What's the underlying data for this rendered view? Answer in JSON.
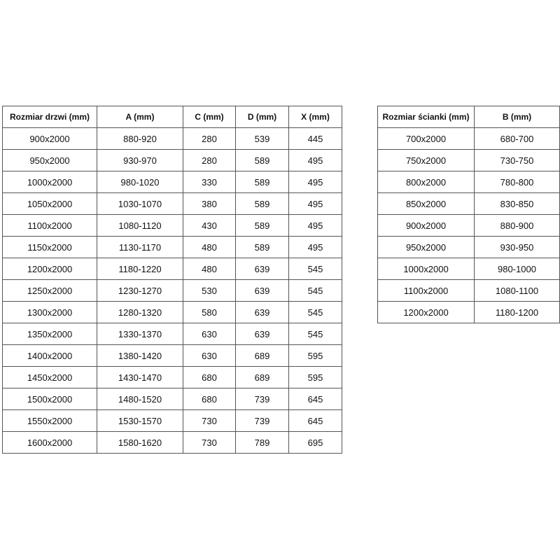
{
  "door_table": {
    "header": [
      "Rozmiar drzwi (mm)",
      "A (mm)",
      "C (mm)",
      "D (mm)",
      "X (mm)"
    ],
    "rows": [
      [
        "900x2000",
        "880-920",
        "280",
        "539",
        "445"
      ],
      [
        "950x2000",
        "930-970",
        "280",
        "589",
        "495"
      ],
      [
        "1000x2000",
        "980-1020",
        "330",
        "589",
        "495"
      ],
      [
        "1050x2000",
        "1030-1070",
        "380",
        "589",
        "495"
      ],
      [
        "1100x2000",
        "1080-1120",
        "430",
        "589",
        "495"
      ],
      [
        "1150x2000",
        "1130-1170",
        "480",
        "589",
        "495"
      ],
      [
        "1200x2000",
        "1180-1220",
        "480",
        "639",
        "545"
      ],
      [
        "1250x2000",
        "1230-1270",
        "530",
        "639",
        "545"
      ],
      [
        "1300x2000",
        "1280-1320",
        "580",
        "639",
        "545"
      ],
      [
        "1350x2000",
        "1330-1370",
        "630",
        "639",
        "545"
      ],
      [
        "1400x2000",
        "1380-1420",
        "630",
        "689",
        "595"
      ],
      [
        "1450x2000",
        "1430-1470",
        "680",
        "689",
        "595"
      ],
      [
        "1500x2000",
        "1480-1520",
        "680",
        "739",
        "645"
      ],
      [
        "1550x2000",
        "1530-1570",
        "730",
        "739",
        "645"
      ],
      [
        "1600x2000",
        "1580-1620",
        "730",
        "789",
        "695"
      ]
    ]
  },
  "panel_table": {
    "header": [
      "Rozmiar ścianki (mm)",
      "B (mm)"
    ],
    "rows": [
      [
        "700x2000",
        "680-700"
      ],
      [
        "750x2000",
        "730-750"
      ],
      [
        "800x2000",
        "780-800"
      ],
      [
        "850x2000",
        "830-850"
      ],
      [
        "900x2000",
        "880-900"
      ],
      [
        "950x2000",
        "930-950"
      ],
      [
        "1000x2000",
        "980-1000"
      ],
      [
        "1100x2000",
        "1080-1100"
      ],
      [
        "1200x2000",
        "1180-1200"
      ]
    ]
  }
}
